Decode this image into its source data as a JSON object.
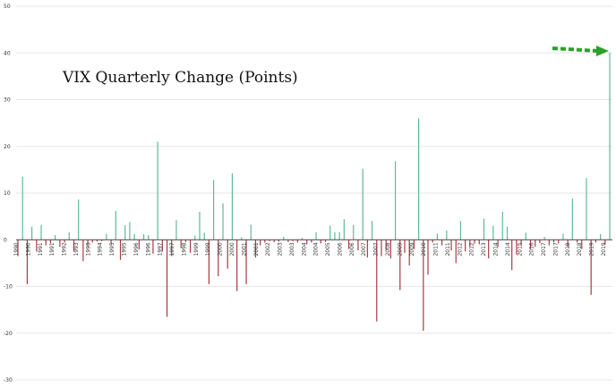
{
  "chart_data": {
    "type": "bar",
    "title": "VIX Quarterly Change (Points)",
    "xlabel": "",
    "ylabel": "",
    "ylim": [
      -30,
      50
    ],
    "yticks": [
      -30,
      -20,
      -10,
      0,
      10,
      20,
      30,
      40,
      50
    ],
    "grid": true,
    "legend": "none",
    "colors": {
      "positive": "#5fb89a",
      "negative": "#a83a45",
      "arrow": "#2aa12a",
      "grid": "#e6e6e6",
      "zero": "#444444"
    },
    "start_year": 1990,
    "year_labels": [
      "1990",
      "1990",
      "1991",
      "1991",
      "1992",
      "1993",
      "1993",
      "1994",
      "1995",
      "1995",
      "1996",
      "1996",
      "1997",
      "1997",
      "1998",
      "1999",
      "1999",
      "2000",
      "2000",
      "2001",
      "2001",
      "2002",
      "2003",
      "2003",
      "2004",
      "2004",
      "2005",
      "2006",
      "2006",
      "2007",
      "2007",
      "2008",
      "2009",
      "2009",
      "2010",
      "2011",
      "2011",
      "2012",
      "2012",
      "2013",
      "2014",
      "2014",
      "2015",
      "2016",
      "2017",
      "2017",
      "2018",
      "2018",
      "2019",
      "2019"
    ],
    "values": [
      -3.5,
      13.5,
      -9.5,
      2.8,
      -2.5,
      3.2,
      -1.2,
      -0.8,
      1.0,
      -1.5,
      -0.6,
      1.6,
      -2.5,
      8.6,
      -4.6,
      -1.5,
      -0.6,
      -0.4,
      -0.3,
      1.3,
      -1.0,
      6.2,
      -4.3,
      3.1,
      3.8,
      1.2,
      -2.1,
      1.2,
      1.0,
      -3.0,
      21.0,
      -2.5,
      -16.5,
      -3.5,
      4.2,
      -1.8,
      -0.5,
      -2.8,
      0.9,
      6.0,
      1.5,
      -9.5,
      12.8,
      -7.8,
      7.8,
      -6.2,
      14.2,
      -11.0,
      0.5,
      -9.5,
      3.2,
      -3.8,
      -1.2,
      -0.6,
      -0.3,
      -0.5,
      -0.4,
      0.6,
      -0.5,
      -0.3,
      -0.6,
      0.4,
      -1.0,
      -0.6,
      1.6,
      -0.8,
      -0.5,
      3.0,
      1.6,
      1.6,
      4.4,
      -2.0,
      3.2,
      -2.3,
      15.2,
      -3.8,
      4.0,
      -17.5,
      -3.5,
      -2.2,
      -4.0,
      16.8,
      -10.8,
      -2.8,
      -5.5,
      -2.0,
      26.0,
      -19.5,
      -7.5,
      -0.6,
      1.3,
      -1.2,
      2.0,
      -2.3,
      -5.0,
      4.0,
      -2.5,
      -1.5,
      -0.8,
      -1.0,
      4.5,
      -4.0,
      3.0,
      -1.5,
      6.0,
      2.8,
      -6.5,
      -3.2,
      -1.3,
      1.5,
      -2.0,
      -1.5,
      -0.7,
      0.6,
      -1.2,
      -0.6,
      -0.8,
      1.3,
      -1.5,
      8.8,
      -0.6,
      -2.0,
      13.2,
      -11.8,
      -0.6,
      1.2,
      -1.0,
      40.0
    ],
    "annotation": {
      "type": "arrow"
    }
  }
}
